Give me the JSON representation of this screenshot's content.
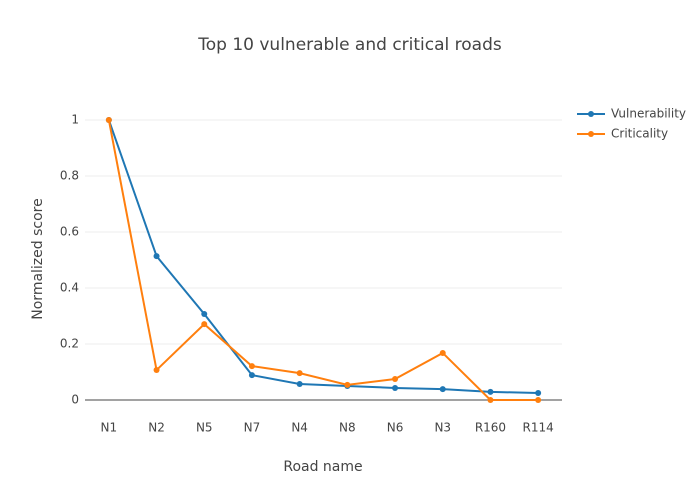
{
  "chart_data": {
    "type": "line",
    "title": "Top 10 vulnerable and critical roads",
    "x_label": "Road name",
    "y_label": "Normalized score",
    "categories": [
      "N1",
      "N2",
      "N5",
      "N7",
      "N4",
      "N8",
      "N6",
      "N3",
      "R160",
      "R114"
    ],
    "series": [
      {
        "name": "Vulnerability",
        "color": "#1f77b4",
        "values": [
          1,
          0.514,
          0.307,
          0.089,
          0.057,
          0.05,
          0.043,
          0.039,
          0.029,
          0.025
        ]
      },
      {
        "name": "Criticality",
        "color": "#ff7f0e",
        "values": [
          1,
          0.107,
          0.271,
          0.121,
          0.096,
          0.054,
          0.075,
          0.168,
          0,
          0
        ]
      }
    ],
    "ylim": [
      -0.0607,
      1.0714
    ],
    "yticks": [
      0,
      0.2,
      0.4,
      0.6,
      0.8,
      1
    ],
    "grid": true,
    "legend": "top-right"
  }
}
